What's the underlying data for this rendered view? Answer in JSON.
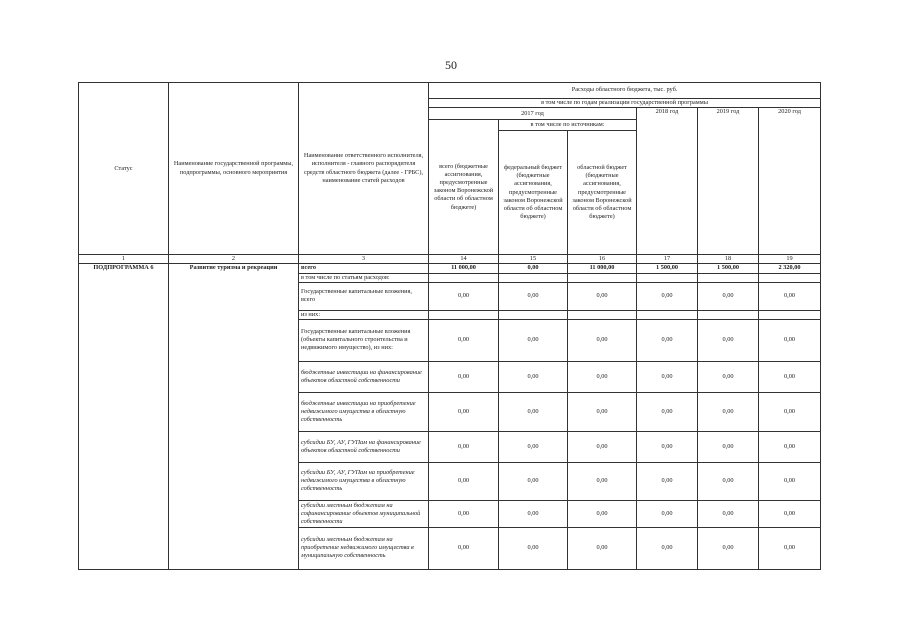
{
  "page_number": "50",
  "header": {
    "status": "Статус",
    "program_name": "Наименование государственной программы, подпрограммы, основного мероприятия",
    "executor": "Наименование ответственного исполнителя, исполнителя - главного распорядителя средств областного бюджета (далее - ГРБС), наименование статей расходов",
    "expenses": "Расходы областного бюджета, тыс. руб.",
    "by_years": "в том числе по годам реализации государственной программы",
    "y2017": "2017 год",
    "by_sources": "в том числе по источникам:",
    "total": "всего (бюджетные ассигнования, предусмотренные законом Воронежской области об областном бюджете)",
    "federal": "федеральный бюджет (бюджетные ассигнования, предусмотренные законом Воронежской области об областном бюджете)",
    "regional": "областной бюджет (бюджетные ассигнования, предусмотренные законом Воронежской области об областном бюджете)",
    "y2018": "2018 год",
    "y2019": "2019 год",
    "y2020": "2020 год"
  },
  "col_numbers": [
    "1",
    "2",
    "3",
    "14",
    "15",
    "16",
    "17",
    "18",
    "19"
  ],
  "status": "ПОДПРОГРАММА 6",
  "program": "Развитие туризма и рекреации",
  "rows": [
    {
      "label": "всего",
      "values": [
        "11 000,00",
        "0,00",
        "11 000,00",
        "1 500,00",
        "1 500,00",
        "2 320,00"
      ]
    },
    {
      "label": "в том числе по статьям расходов:",
      "values": [
        "",
        "",
        "",
        "",
        "",
        ""
      ]
    },
    {
      "label": "Государственные капитальные вложения, всего",
      "values": [
        "0,00",
        "0,00",
        "0,00",
        "0,00",
        "0,00",
        "0,00"
      ]
    },
    {
      "label": "из них:",
      "values": [
        "",
        "",
        "",
        "",
        "",
        ""
      ]
    },
    {
      "label": "Государственные капитальные вложения (объекты капитального строительства и недвижимого имущество), из них:",
      "values": [
        "0,00",
        "0,00",
        "0,00",
        "0,00",
        "0,00",
        "0,00"
      ]
    },
    {
      "label": "бюджетные инвестиции на финансирование объектов областной собственности",
      "values": [
        "0,00",
        "0,00",
        "0,00",
        "0,00",
        "0,00",
        "0,00"
      ]
    },
    {
      "label": "бюджетные инвестиции на приобретение недвижимого имущества в областную собственность",
      "values": [
        "0,00",
        "0,00",
        "0,00",
        "0,00",
        "0,00",
        "0,00"
      ]
    },
    {
      "label": "субсидии БУ, АУ, ГУПам на финансирование объектов областной собственности",
      "values": [
        "0,00",
        "0,00",
        "0,00",
        "0,00",
        "0,00",
        "0,00"
      ]
    },
    {
      "label": "субсидии БУ, АУ, ГУПам на приобретение недвижимого имущества в областную собственность",
      "values": [
        "0,00",
        "0,00",
        "0,00",
        "0,00",
        "0,00",
        "0,00"
      ]
    },
    {
      "label": "субсидии местным бюджетам на софинансирование объектов муниципальной собственности",
      "values": [
        "0,00",
        "0,00",
        "0,00",
        "0,00",
        "0,00",
        "0,00"
      ]
    },
    {
      "label": "субсидии местным бюджетам на приобретение недвижимого имущества в муниципальную собственность",
      "values": [
        "0,00",
        "0,00",
        "0,00",
        "0,00",
        "0,00",
        "0,00"
      ]
    }
  ]
}
